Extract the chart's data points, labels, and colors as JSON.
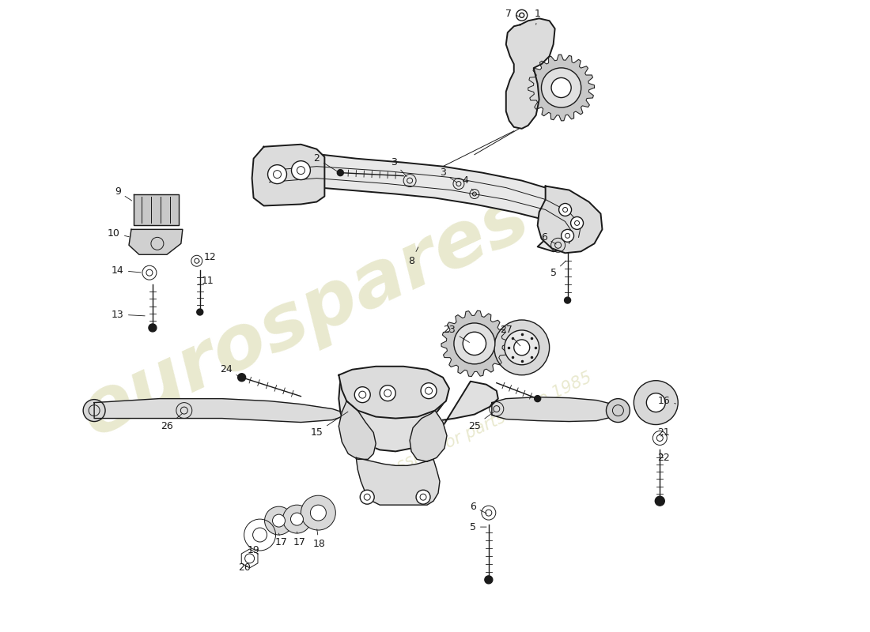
{
  "background_color": "#ffffff",
  "watermark_text": "eurospares",
  "watermark_subtext": "a passion for parts since 1985",
  "watermark_color": "#d4d4a0",
  "watermark_alpha": 0.5,
  "line_color": "#1a1a1a",
  "label_color": "#1a1a1a",
  "label_fontsize": 9,
  "figsize": [
    11.0,
    8.0
  ],
  "dpi": 100
}
